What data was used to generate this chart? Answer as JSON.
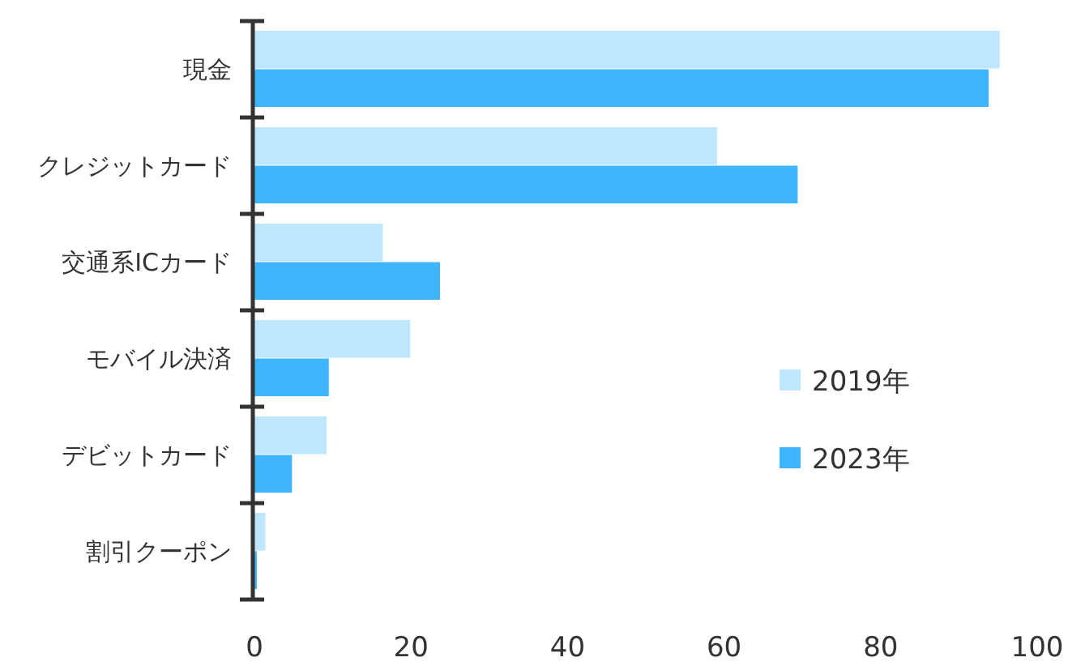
{
  "chart_data": {
    "type": "bar",
    "orientation": "horizontal",
    "categories": [
      "現金",
      "クレジットカード",
      "交通系ICカード",
      "モバイル決済",
      "デビットカード",
      "割引クーポン"
    ],
    "series": [
      {
        "name": "2019年",
        "color": "#bfe6ff",
        "values": [
          95.2,
          59.1,
          16.4,
          19.9,
          9.2,
          1.4
        ]
      },
      {
        "name": "2023年",
        "color": "#3fb4ff",
        "values": [
          93.8,
          69.4,
          23.7,
          9.5,
          4.8,
          0.3
        ]
      }
    ],
    "xlim": [
      0,
      100
    ],
    "xticks": [
      0,
      20,
      40,
      60,
      80,
      100
    ],
    "grid": false,
    "legend": "bottom right"
  }
}
